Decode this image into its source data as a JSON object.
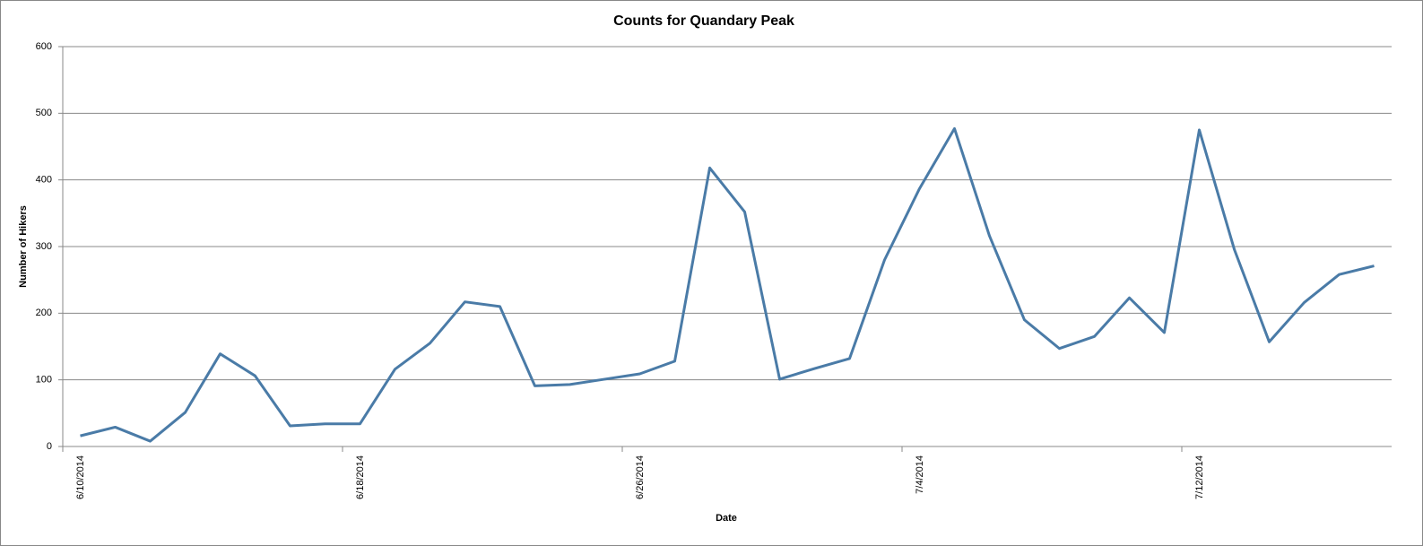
{
  "chart_data": {
    "type": "line",
    "title": "Counts for Quandary  Peak",
    "x_label": "Date",
    "y_label": "Number of Hikers",
    "categories": [
      "6/10/2014",
      null,
      null,
      null,
      null,
      null,
      null,
      null,
      "6/18/2014",
      null,
      null,
      null,
      null,
      null,
      null,
      null,
      "6/26/2014",
      null,
      null,
      null,
      null,
      null,
      null,
      null,
      "7/4/2014",
      null,
      null,
      null,
      null,
      null,
      null,
      null,
      "7/12/2014",
      null,
      null,
      null,
      null,
      null
    ],
    "series": [
      {
        "name": "Number of Hikers",
        "color": "#4a7ba7",
        "values": [
          16,
          29,
          8,
          51,
          139,
          106,
          31,
          34,
          34,
          116,
          155,
          217,
          210,
          91,
          93,
          101,
          109,
          128,
          418,
          352,
          101,
          117,
          132,
          280,
          387,
          477,
          316,
          190,
          147,
          165,
          223,
          171,
          475,
          296,
          157,
          216,
          258,
          271
        ]
      }
    ],
    "ylim": [
      0,
      600
    ],
    "yticks": [
      0,
      100,
      200,
      300,
      400,
      500,
      600
    ],
    "grid": true
  }
}
